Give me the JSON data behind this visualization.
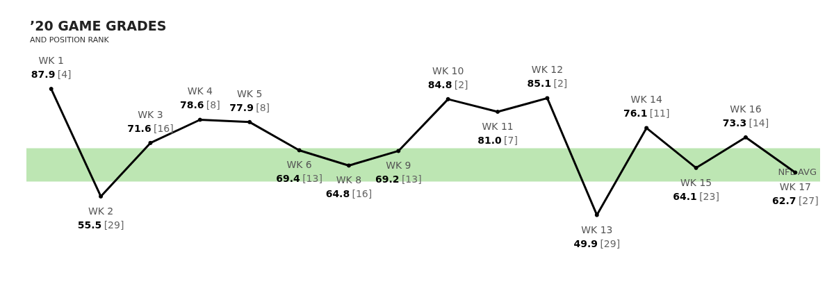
{
  "chart_data": {
    "type": "line",
    "title": "’20 GAME GRADES",
    "subtitle": "AND POSITION RANK",
    "categories": [
      "WK 1",
      "WK 2",
      "WK 3",
      "WK 4",
      "WK 5",
      "WK 6",
      "WK 8",
      "WK 9",
      "WK 10",
      "WK 11",
      "WK 12",
      "WK 13",
      "WK 14",
      "WK 15",
      "WK 16",
      "WK 17"
    ],
    "series": [
      {
        "color": "#000000",
        "values": [
          87.9,
          55.5,
          71.6,
          78.6,
          77.9,
          69.4,
          64.8,
          69.2,
          84.8,
          81.0,
          85.1,
          49.9,
          76.1,
          64.1,
          73.3,
          62.7
        ],
        "value_labels": [
          "87.9 [4]",
          "55.5 [29]",
          "71.6 [16]",
          "78.6 [8]",
          "77.9 [8]",
          "69.4 [13]",
          "64.8 [16]",
          "69.2 [13]",
          "84.8 [2]",
          "81.0 [7]",
          "85.1 [2]",
          "49.9 [29]",
          "76.1 [11]",
          "64.1 [23]",
          "73.3 [14]",
          "62.7 [27]"
        ]
      }
    ],
    "tick_labels": false,
    "grid": false,
    "marker": "circle",
    "line_style": "solid",
    "bands": [
      {
        "axis": "y",
        "from": 60,
        "to": 70,
        "label": "NFL AVG",
        "color": "#bde6b3"
      }
    ]
  }
}
